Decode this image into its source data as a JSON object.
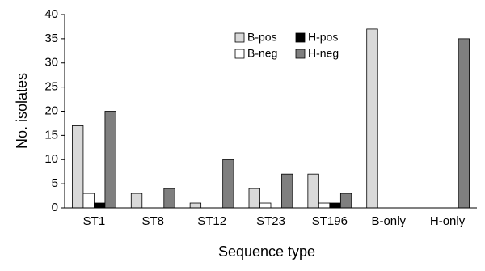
{
  "chart_data": {
    "type": "bar",
    "x_label": "Sequence type",
    "y_label": "No. isolates",
    "categories": [
      "ST1",
      "ST8",
      "ST12",
      "ST23",
      "ST196",
      "B-only",
      "H-only"
    ],
    "series": [
      {
        "name": "B-pos",
        "color": "#d9d9d9",
        "values": [
          17,
          3,
          1,
          4,
          7,
          37,
          0
        ]
      },
      {
        "name": "B-neg",
        "color": "#ffffff",
        "values": [
          3,
          0,
          0,
          1,
          1,
          0,
          0
        ]
      },
      {
        "name": "H-pos",
        "color": "#000000",
        "values": [
          1,
          0,
          0,
          0,
          1,
          0,
          0
        ]
      },
      {
        "name": "H-neg",
        "color": "#7f7f7f",
        "values": [
          20,
          4,
          10,
          7,
          3,
          0,
          35
        ]
      }
    ],
    "ylim": [
      0,
      40
    ],
    "yticks": [
      0,
      5,
      10,
      15,
      20,
      25,
      30,
      35,
      40
    ],
    "grid": false
  }
}
